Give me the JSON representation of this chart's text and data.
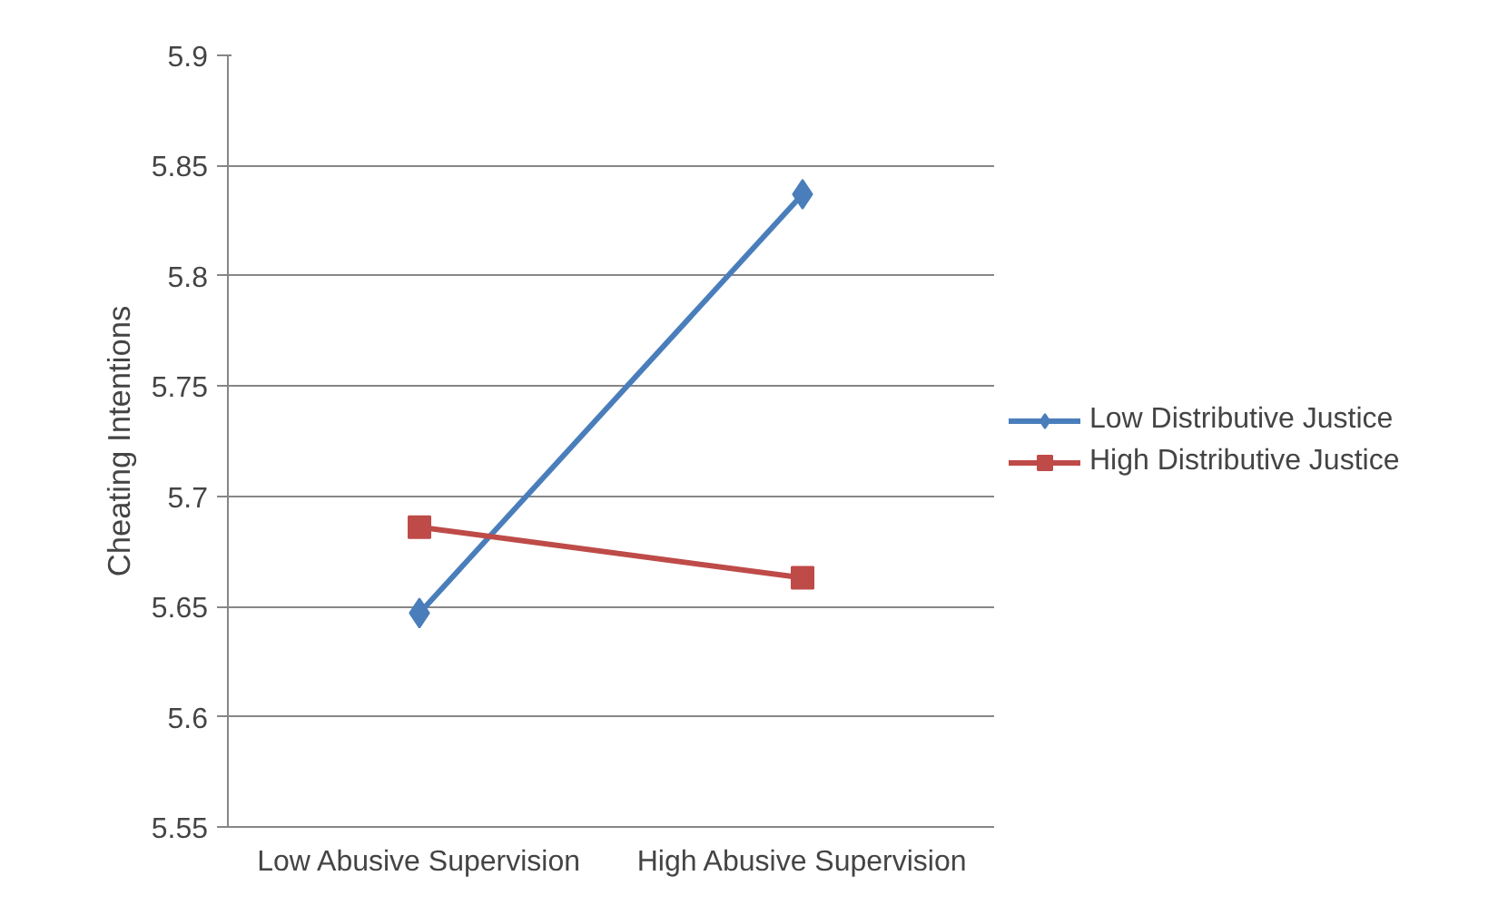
{
  "chart_data": {
    "type": "line",
    "ylabel": "Cheating Intentions",
    "categories": [
      "Low Abusive Supervision",
      "High Abusive Supervision"
    ],
    "series": [
      {
        "name": "Low Distributive Justice",
        "color": "#4a7ebb",
        "marker": "diamond",
        "values": [
          5.647,
          5.837
        ]
      },
      {
        "name": "High Distributive Justice",
        "color": "#be4b48",
        "marker": "square",
        "values": [
          5.686,
          5.663
        ]
      }
    ],
    "ylim": [
      5.55,
      5.9
    ],
    "yticks": [
      5.55,
      5.6,
      5.65,
      5.7,
      5.75,
      5.8,
      5.85,
      5.9
    ],
    "grid": "y",
    "legend": "right",
    "line_style": "solid"
  }
}
